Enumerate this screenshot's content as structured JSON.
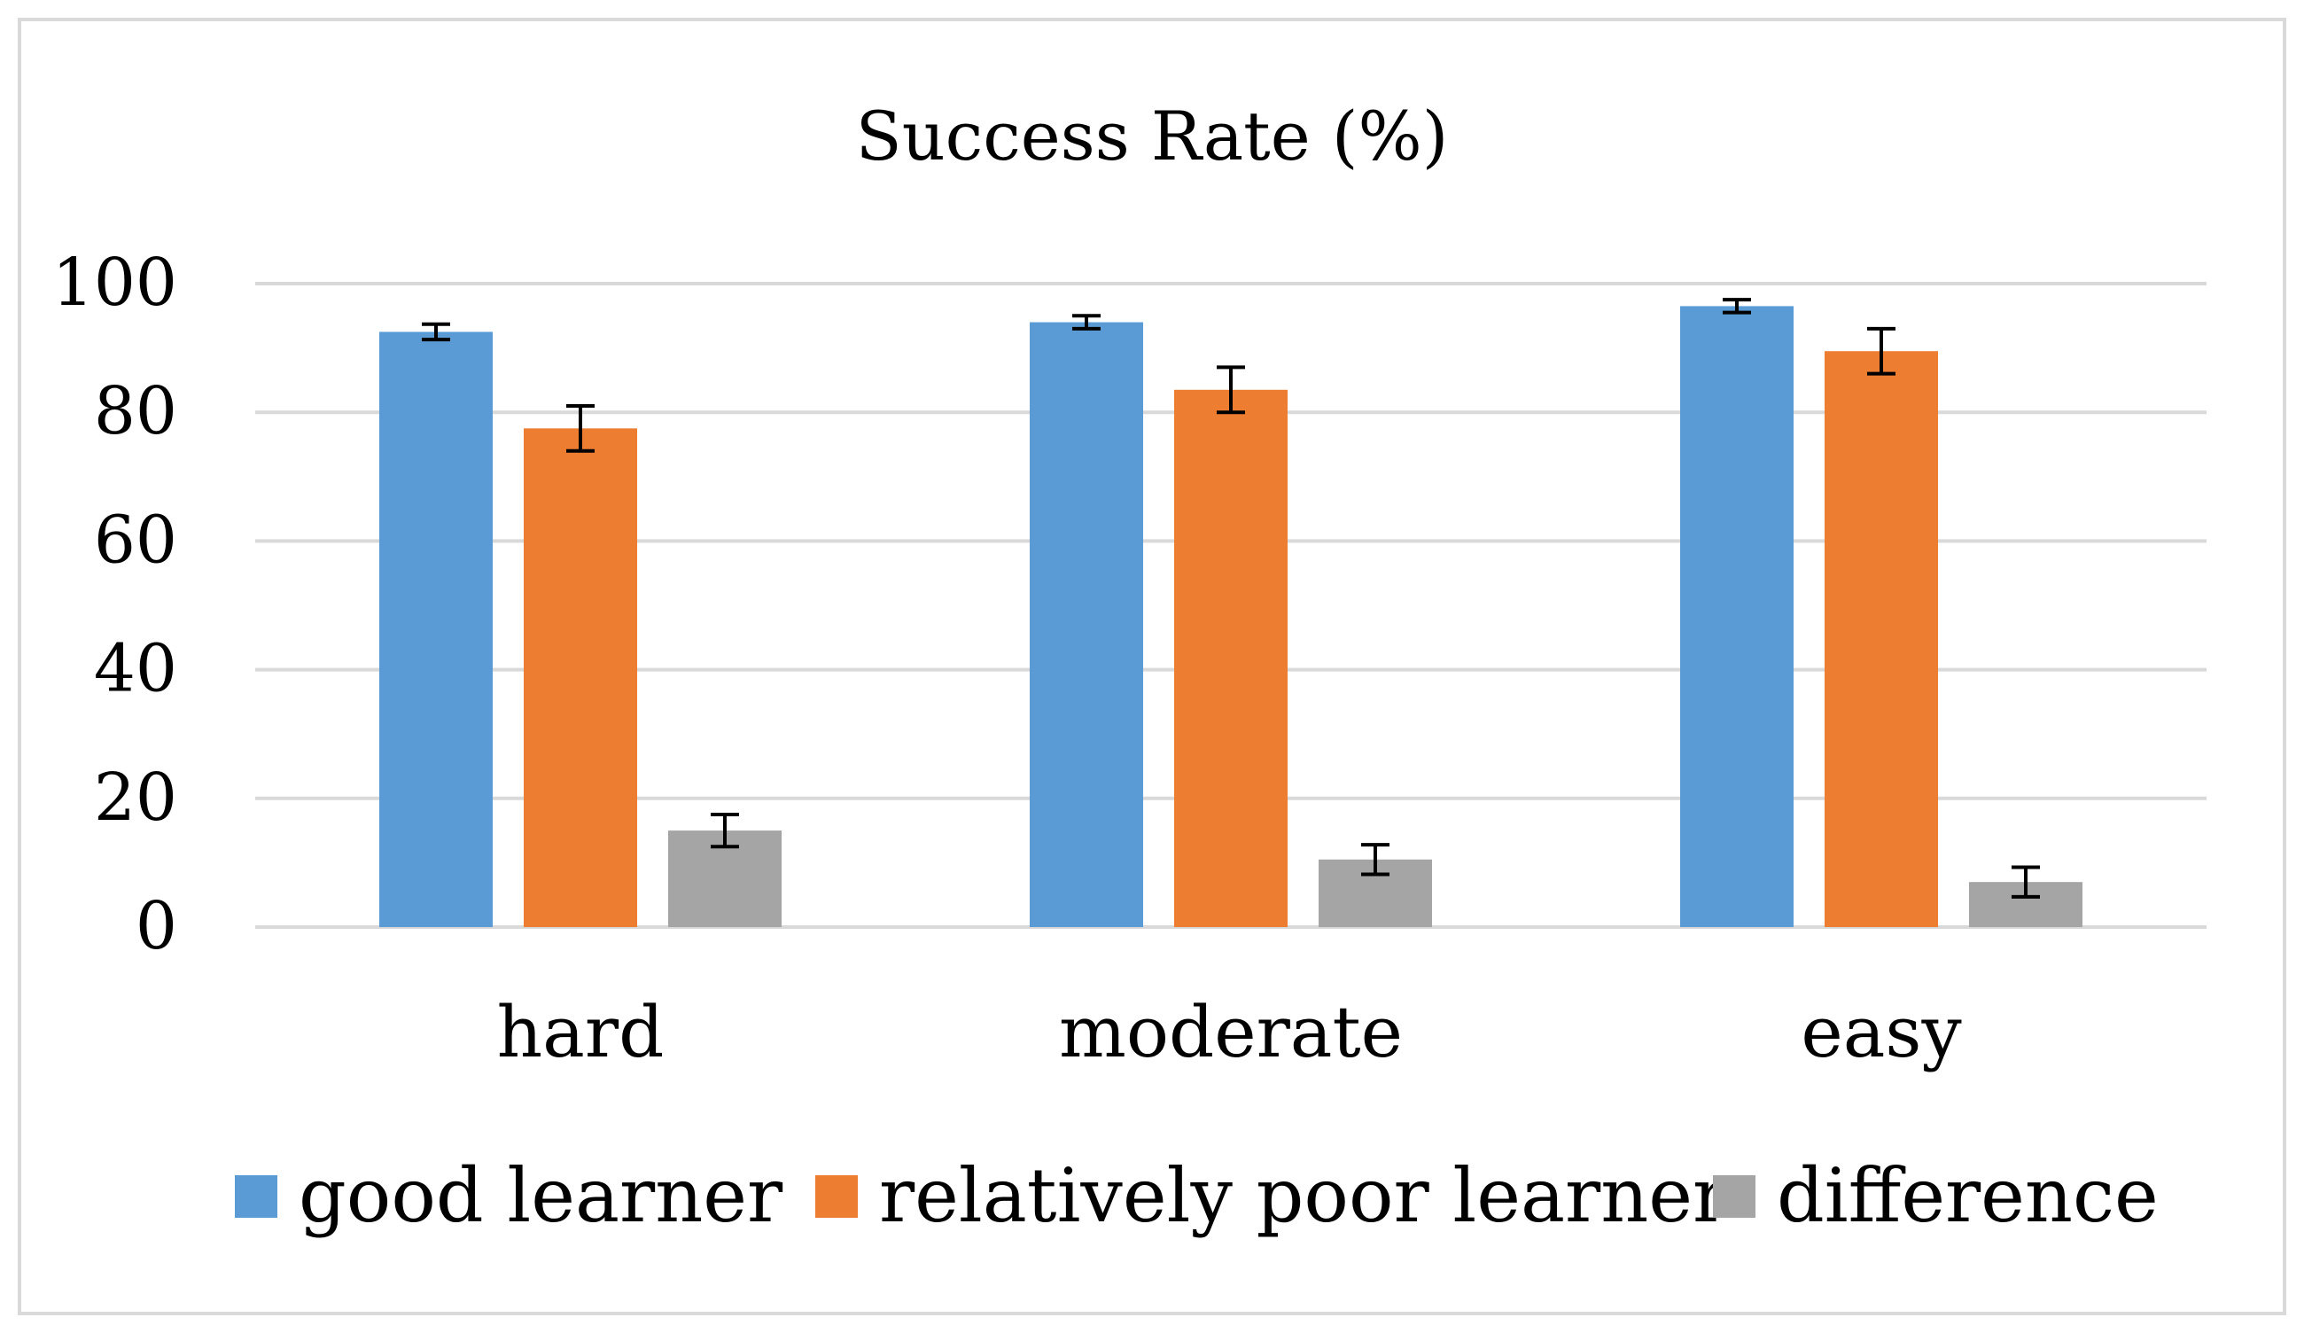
{
  "chart_data": {
    "type": "bar",
    "title": "Success Rate (%)",
    "xlabel": "",
    "ylabel": "",
    "ylim": [
      0,
      100
    ],
    "yticks": [
      0,
      20,
      40,
      60,
      80,
      100
    ],
    "grid": true,
    "legend_position": "bottom",
    "categories": [
      "hard",
      "moderate",
      "easy"
    ],
    "series": [
      {
        "name": "good learner",
        "color": "#5b9bd5",
        "values": [
          92.5,
          94,
          96.5
        ],
        "errors": [
          1.2,
          1.0,
          1.0
        ]
      },
      {
        "name": "relatively poor learner",
        "color": "#ed7d31",
        "values": [
          77.5,
          83.5,
          89.5
        ],
        "errors": [
          3.5,
          3.5,
          3.5
        ]
      },
      {
        "name": "difference",
        "color": "#a5a5a5",
        "values": [
          15,
          10.5,
          7
        ],
        "errors": [
          2.5,
          2.3,
          2.3
        ]
      }
    ]
  }
}
